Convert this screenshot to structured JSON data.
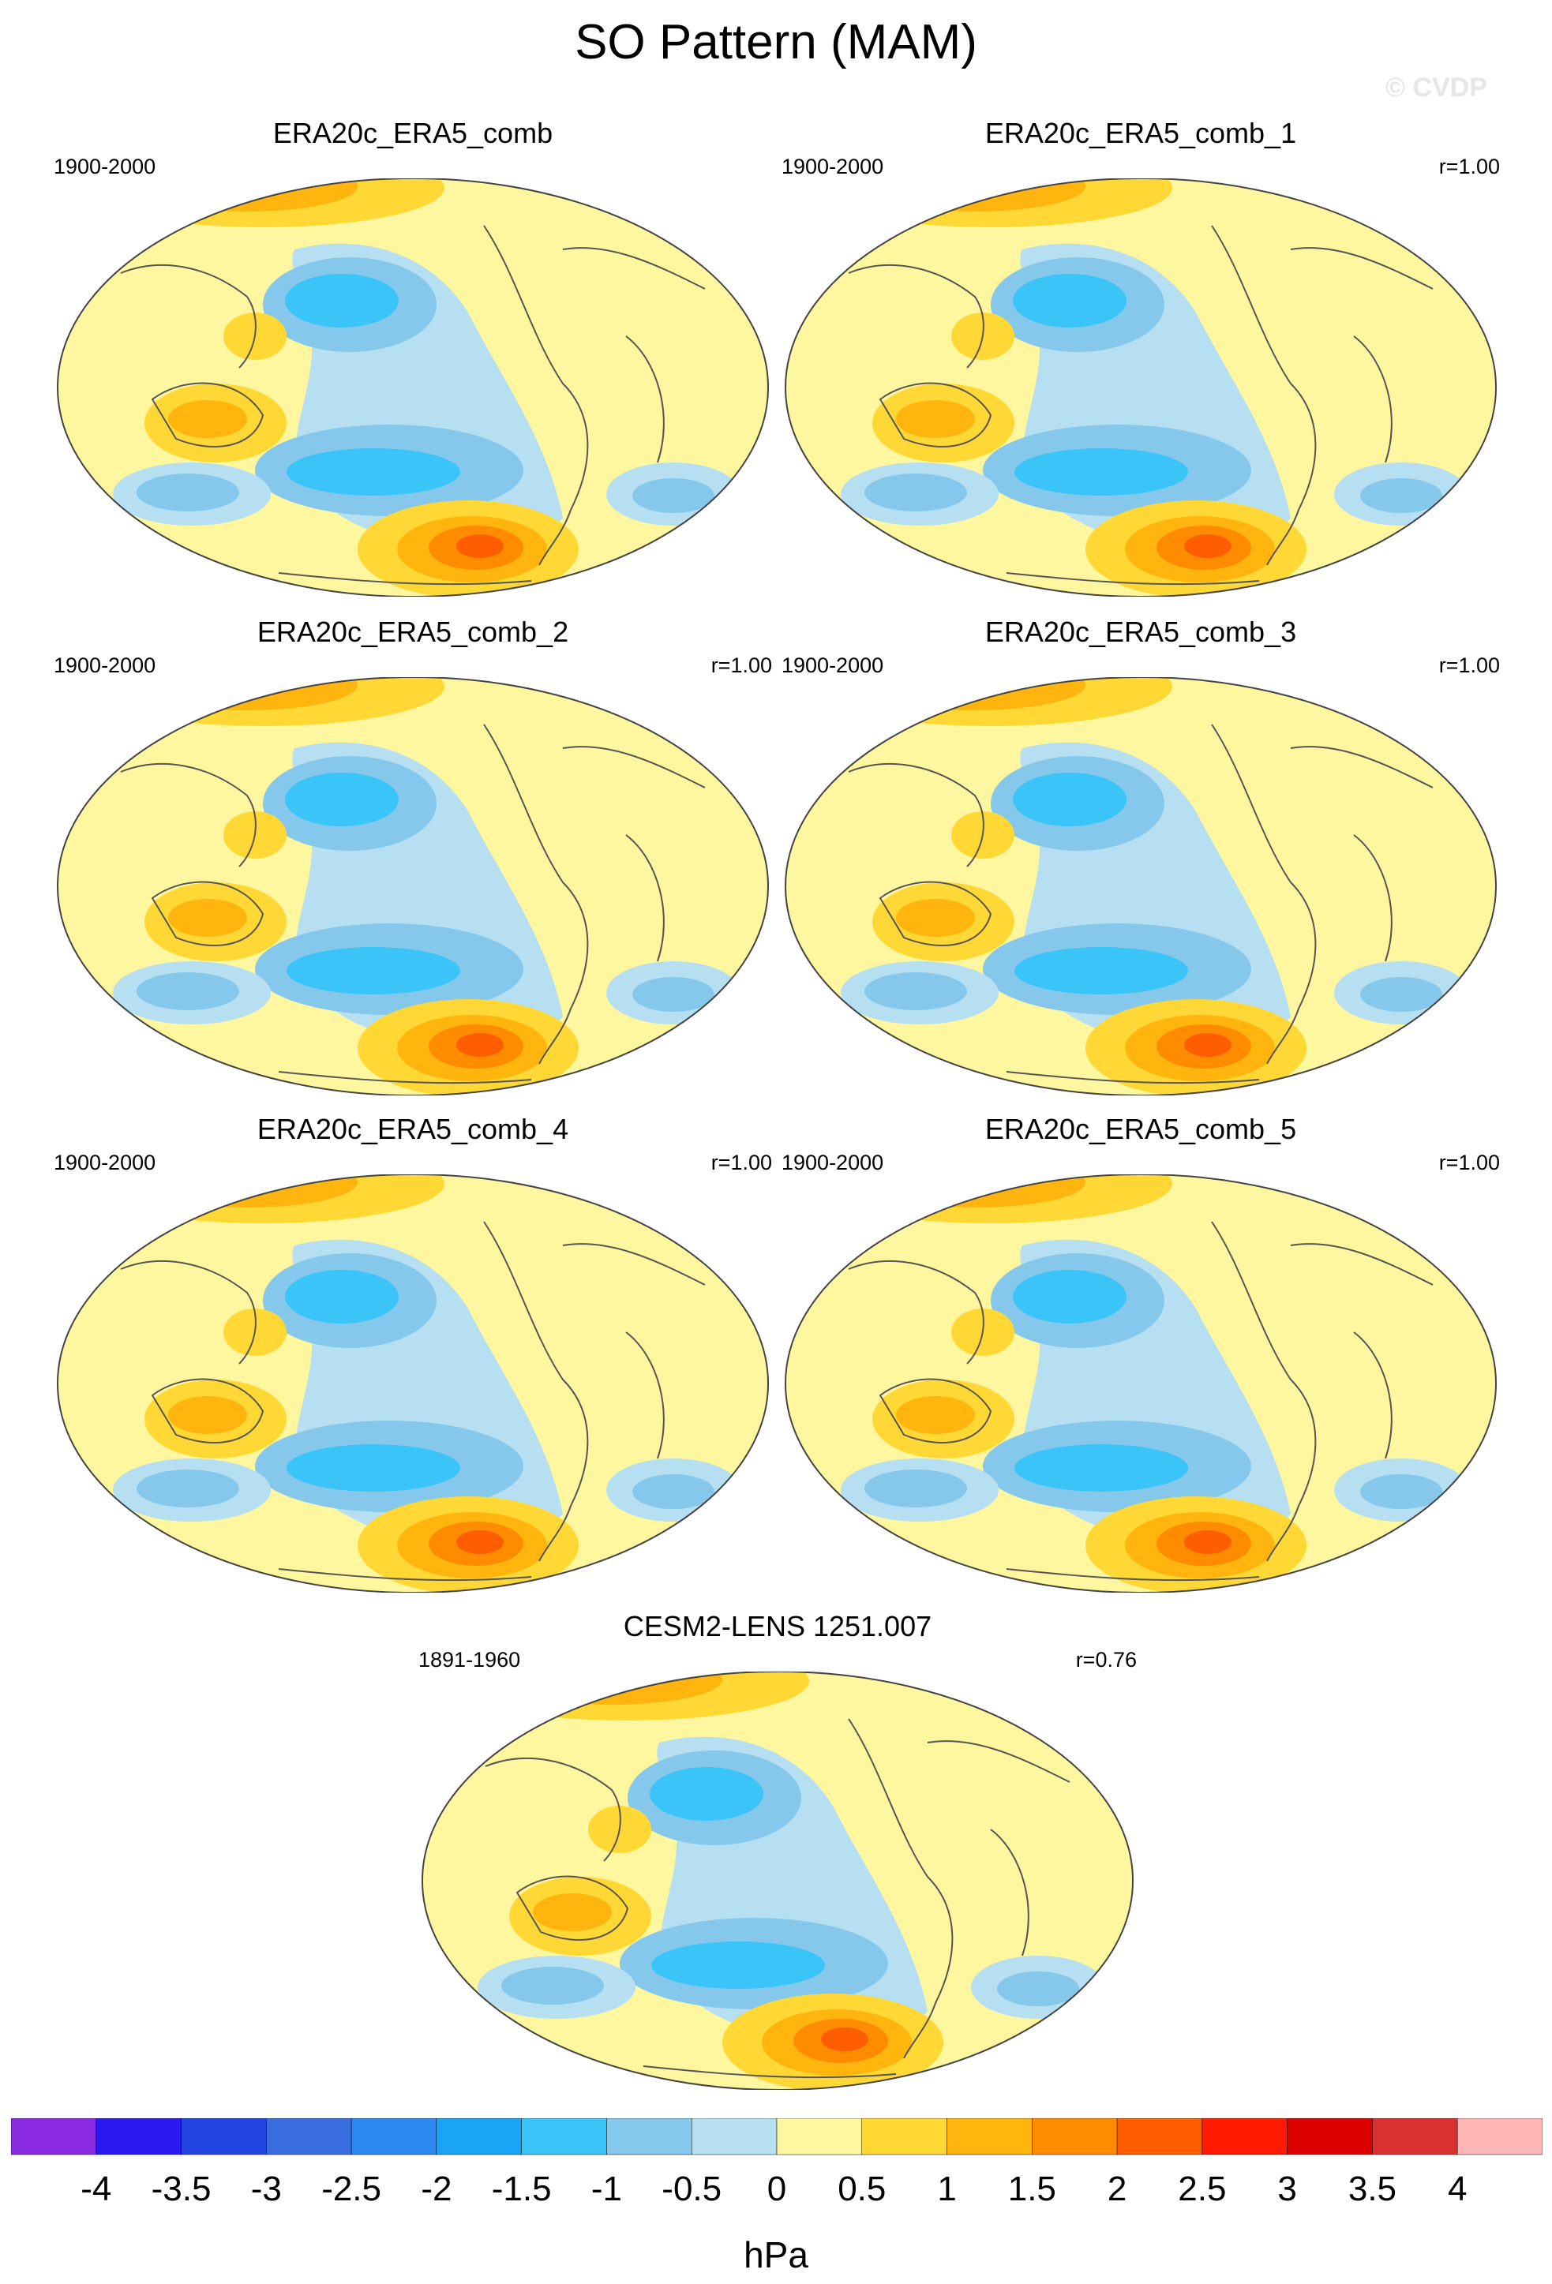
{
  "title": "SO Pattern (MAM)",
  "credit": "© CVDP",
  "panels": [
    {
      "title": "ERA20c_ERA5_comb",
      "years": "1900-2000",
      "corr": ""
    },
    {
      "title": "ERA20c_ERA5_comb_1",
      "years": "1900-2000",
      "corr": "r=1.00"
    },
    {
      "title": "ERA20c_ERA5_comb_2",
      "years": "1900-2000",
      "corr": "r=1.00"
    },
    {
      "title": "ERA20c_ERA5_comb_3",
      "years": "1900-2000",
      "corr": "r=1.00"
    },
    {
      "title": "ERA20c_ERA5_comb_4",
      "years": "1900-2000",
      "corr": "r=1.00"
    },
    {
      "title": "ERA20c_ERA5_comb_5",
      "years": "1900-2000",
      "corr": "r=1.00"
    },
    {
      "title": "CESM2-LENS 1251.007",
      "years": "1891-1960",
      "corr": "r=0.76"
    }
  ],
  "colorbar": {
    "labels": [
      "-4",
      "-3.5",
      "-3",
      "-2.5",
      "-2",
      "-1.5",
      "-1",
      "-0.5",
      "0",
      "0.5",
      "1",
      "1.5",
      "2",
      "2.5",
      "3",
      "3.5",
      "4"
    ],
    "unit": "hPa",
    "colors": [
      "#8a2be2",
      "#2a1aef",
      "#2244e0",
      "#3a6ee0",
      "#2a88f0",
      "#1aa4f5",
      "#3ac4f7",
      "#86c8eb",
      "#b6e0f2",
      "#fff7a0",
      "#ffd835",
      "#ffb50e",
      "#ff8c00",
      "#ff5e00",
      "#ff1a00",
      "#dd0000",
      "#d93030",
      "#ffb6b6"
    ]
  }
}
